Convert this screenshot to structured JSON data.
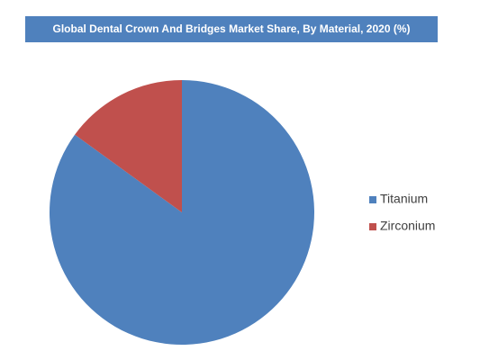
{
  "chart_data": {
    "type": "pie",
    "title": "Global Dental Crown And Bridges Market  Share, By Material, 2020 (%)",
    "categories": [
      "Titanium",
      "Zirconium"
    ],
    "values": [
      85,
      15
    ],
    "colors": [
      "#4f81bd",
      "#c0504d"
    ],
    "legend": "right"
  }
}
